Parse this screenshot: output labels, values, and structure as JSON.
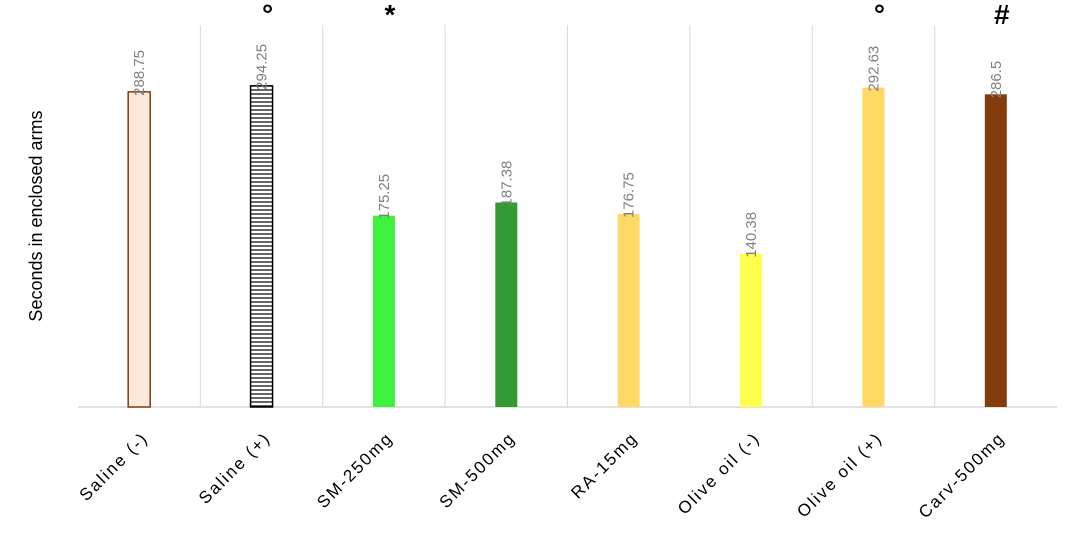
{
  "chart_data": {
    "type": "bar",
    "y_label": "Seconds in enclosed arms",
    "categories": [
      "Saline (-)",
      "Saline (+)",
      "SM-250mg",
      "SM-500mg",
      "RA-15mg",
      "Olive oil (-)",
      "Olive oil (+)",
      "Carv-500mg"
    ],
    "values": [
      288.75,
      294.25,
      175.25,
      187.38,
      176.75,
      140.38,
      292.63,
      286.5
    ],
    "colors": [
      "#fde9dc",
      "#ffffff",
      "#3ef23e",
      "#339933",
      "#ffd966",
      "#ffff4d",
      "#ffd966",
      "#843c0c"
    ],
    "edgecolors": [
      "#843c0c",
      "#000000",
      null,
      null,
      null,
      null,
      null,
      null
    ],
    "hatches": [
      null,
      "horizontal",
      null,
      null,
      null,
      null,
      null,
      null
    ],
    "markers": [
      null,
      "°",
      "*",
      null,
      null,
      null,
      "°",
      "#"
    ],
    "ylim": [
      0,
      350
    ],
    "grid": true
  }
}
